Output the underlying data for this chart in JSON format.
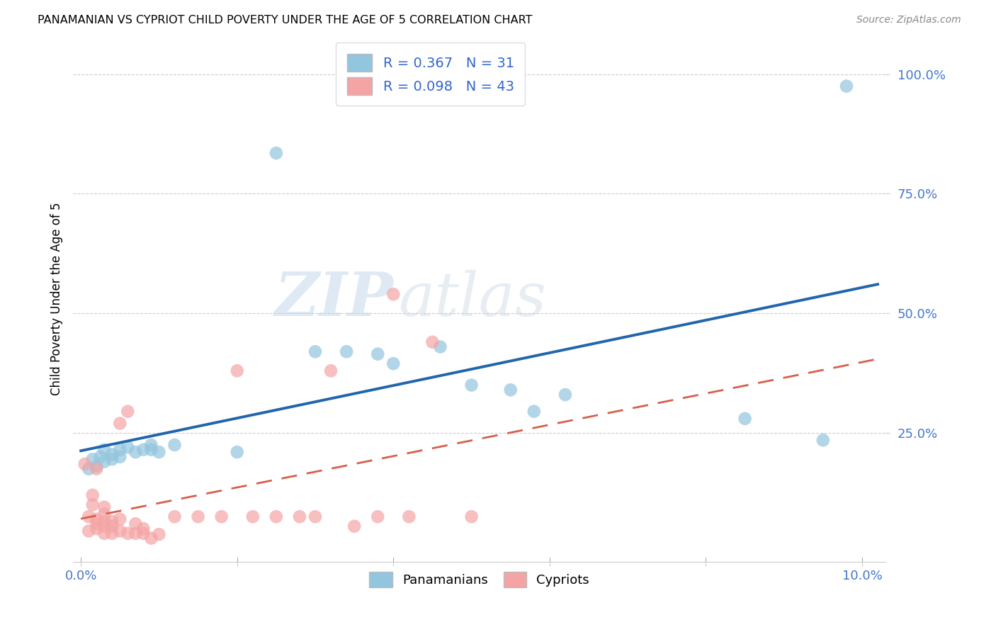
{
  "title": "PANAMANIAN VS CYPRIOT CHILD POVERTY UNDER THE AGE OF 5 CORRELATION CHART",
  "source": "Source: ZipAtlas.com",
  "ylabel": "Child Poverty Under the Age of 5",
  "xlim": [
    -0.001,
    0.103
  ],
  "ylim": [
    -0.02,
    1.08
  ],
  "xtick_positions": [
    0.0,
    0.02,
    0.04,
    0.06,
    0.08,
    0.1
  ],
  "xticklabels": [
    "0.0%",
    "",
    "",
    "",
    "",
    "10.0%"
  ],
  "ytick_positions": [
    0.25,
    0.5,
    0.75,
    1.0
  ],
  "yticklabels": [
    "25.0%",
    "50.0%",
    "75.0%",
    "100.0%"
  ],
  "panama_R": 0.367,
  "panama_N": 31,
  "cyprus_R": 0.098,
  "cyprus_N": 43,
  "panama_color": "#92c5de",
  "cyprus_color": "#f4a4a4",
  "panama_line_color": "#2166ac",
  "cyprus_line_color": "#d6604d",
  "panama_x": [
    0.001,
    0.0015,
    0.002,
    0.0025,
    0.003,
    0.003,
    0.004,
    0.004,
    0.005,
    0.005,
    0.006,
    0.007,
    0.008,
    0.009,
    0.009,
    0.01,
    0.012,
    0.02,
    0.025,
    0.03,
    0.034,
    0.038,
    0.04,
    0.046,
    0.05,
    0.055,
    0.058,
    0.062,
    0.085,
    0.095,
    0.098
  ],
  "panama_y": [
    0.175,
    0.195,
    0.18,
    0.2,
    0.19,
    0.215,
    0.195,
    0.205,
    0.2,
    0.215,
    0.22,
    0.21,
    0.215,
    0.215,
    0.225,
    0.21,
    0.225,
    0.21,
    0.835,
    0.42,
    0.42,
    0.415,
    0.395,
    0.43,
    0.35,
    0.34,
    0.295,
    0.33,
    0.28,
    0.235,
    0.975
  ],
  "cyprus_x": [
    0.0005,
    0.001,
    0.001,
    0.0015,
    0.0015,
    0.002,
    0.002,
    0.002,
    0.002,
    0.003,
    0.003,
    0.003,
    0.003,
    0.003,
    0.004,
    0.004,
    0.004,
    0.005,
    0.005,
    0.005,
    0.006,
    0.006,
    0.007,
    0.007,
    0.008,
    0.008,
    0.009,
    0.01,
    0.012,
    0.015,
    0.018,
    0.02,
    0.022,
    0.025,
    0.028,
    0.03,
    0.032,
    0.035,
    0.038,
    0.04,
    0.042,
    0.045,
    0.05
  ],
  "cyprus_y": [
    0.185,
    0.045,
    0.075,
    0.1,
    0.12,
    0.05,
    0.06,
    0.07,
    0.175,
    0.04,
    0.055,
    0.065,
    0.08,
    0.095,
    0.04,
    0.055,
    0.065,
    0.045,
    0.07,
    0.27,
    0.04,
    0.295,
    0.04,
    0.06,
    0.04,
    0.05,
    0.03,
    0.038,
    0.075,
    0.075,
    0.075,
    0.38,
    0.075,
    0.075,
    0.075,
    0.075,
    0.38,
    0.055,
    0.075,
    0.54,
    0.075,
    0.44,
    0.075
  ]
}
